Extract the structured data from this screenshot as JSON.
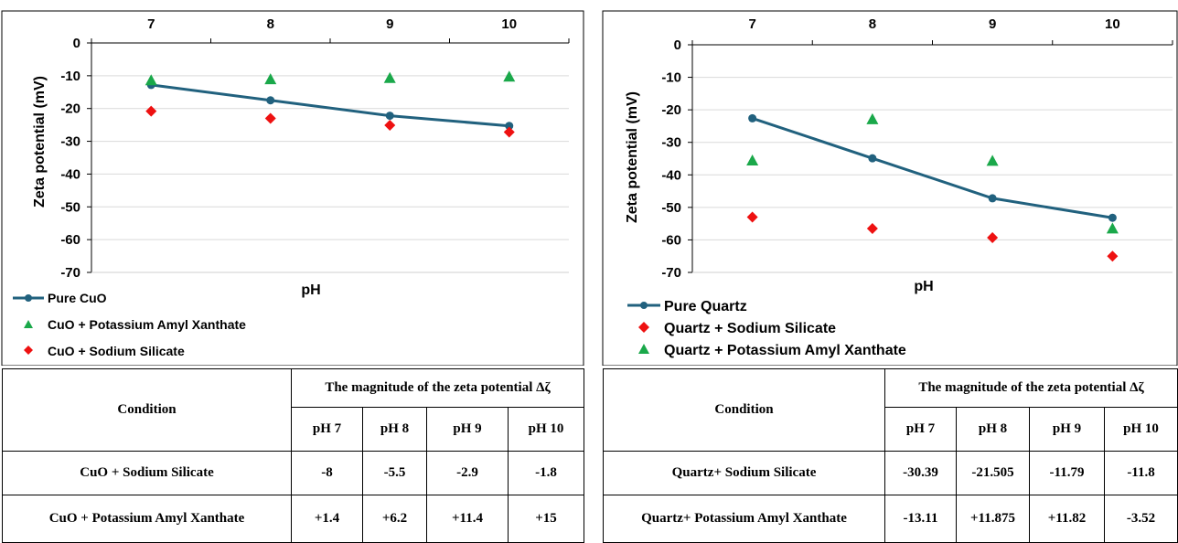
{
  "chart_data": [
    {
      "type": "line",
      "xlabel": "pH",
      "ylabel": "Zeta potential (mV)",
      "x": [
        7,
        8,
        9,
        10
      ],
      "xlim": [
        6.5,
        10.5
      ],
      "ylim": [
        -70,
        0
      ],
      "yticks": [
        "0",
        "-10",
        "-20",
        "-30",
        "-40",
        "-50",
        "-60",
        "-70"
      ],
      "xtick_labels": [
        "7",
        "8",
        "9",
        "10"
      ],
      "grid": true,
      "legend_position": "bottom-left",
      "series": [
        {
          "name": "Pure CuO",
          "kind": "line",
          "marker": "circle",
          "color": "#21617e",
          "values": [
            -12.8,
            -17.5,
            -22.2,
            -25.3
          ]
        },
        {
          "name": "CuO + Potassium Amyl Xanthate",
          "kind": "scatter",
          "marker": "triangle",
          "color": "#1aa84a",
          "values": [
            -11.5,
            -11.2,
            -10.8,
            -10.4
          ]
        },
        {
          "name": "CuO + Sodium Silicate",
          "kind": "scatter",
          "marker": "diamond",
          "color": "#ee1111",
          "values": [
            -20.8,
            -23.0,
            -25.1,
            -27.2
          ]
        }
      ]
    },
    {
      "type": "line",
      "xlabel": "pH",
      "ylabel": "Zeta potential (mV)",
      "x": [
        7,
        8,
        9,
        10
      ],
      "xlim": [
        6.5,
        10.5
      ],
      "ylim": [
        -70,
        0
      ],
      "yticks": [
        "0",
        "-10",
        "-20",
        "-30",
        "-40",
        "-50",
        "-60",
        "-70"
      ],
      "xtick_labels": [
        "7",
        "8",
        "9",
        "10"
      ],
      "grid": true,
      "legend_position": "bottom-left",
      "series": [
        {
          "name": "Pure Quartz",
          "kind": "line",
          "marker": "circle",
          "color": "#21617e",
          "values": [
            -22.6,
            -34.9,
            -47.2,
            -53.2
          ]
        },
        {
          "name": "Quartz + Sodium Silicate",
          "kind": "scatter",
          "marker": "diamond",
          "color": "#ee1111",
          "values": [
            -53.0,
            -56.5,
            -59.3,
            -65.0
          ]
        },
        {
          "name": "Quartz + Potassium Amyl Xanthate",
          "kind": "scatter",
          "marker": "triangle",
          "color": "#1aa84a",
          "values": [
            -35.7,
            -23.0,
            -35.8,
            -56.6
          ]
        }
      ]
    }
  ],
  "tables": [
    {
      "condition_header": "Condition",
      "group_header": "The magnitude of the zeta potential Δζ",
      "ph_headers": [
        "pH 7",
        "pH 8",
        "pH 9",
        "pH 10"
      ],
      "rows": [
        {
          "condition": "CuO + Sodium Silicate",
          "values": [
            "-8",
            "-5.5",
            "-2.9",
            "-1.8"
          ]
        },
        {
          "condition": "CuO + Potassium Amyl Xanthate",
          "values": [
            "+1.4",
            "+6.2",
            "+11.4",
            "+15"
          ]
        }
      ]
    },
    {
      "condition_header": "Condition",
      "group_header": "The magnitude of the zeta potential Δζ",
      "ph_headers": [
        "pH 7",
        "pH 8",
        "pH 9",
        "pH 10"
      ],
      "rows": [
        {
          "condition": "Quartz+ Sodium Silicate",
          "values": [
            "-30.39",
            "-21.505",
            "-11.79",
            "-11.8"
          ]
        },
        {
          "condition": "Quartz+ Potassium Amyl Xanthate",
          "values": [
            "-13.11",
            "+11.875",
            "+11.82",
            "-3.52"
          ]
        }
      ]
    }
  ]
}
